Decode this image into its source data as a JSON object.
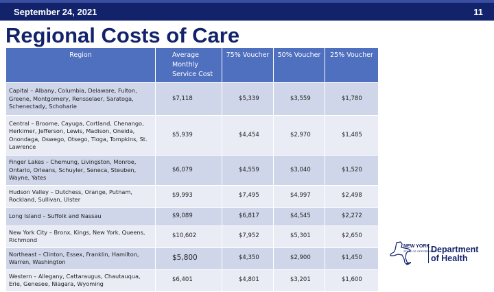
{
  "header": {
    "date": "September 24, 2021",
    "page_number": "11"
  },
  "title": "Regional Costs of Care",
  "table": {
    "columns": {
      "region": "Region",
      "average": "Average Monthly Service Cost",
      "v75": "75% Voucher",
      "v50": "50% Voucher",
      "v25": "25% Voucher"
    },
    "rows": [
      {
        "region": "Capital – Albany, Columbia, Delaware, Fulton, Greene, Montgomery, Rensselaer, Saratoga, Schenectady, Schoharie",
        "average": "$7,118",
        "v75": "$5,339",
        "v50": "$3,559",
        "v25": "$1,780"
      },
      {
        "region": "Central – Broome, Cayuga, Cortland, Chenango, Herkimer, Jefferson, Lewis, Madison, Oneida, Onondaga, Oswego, Otsego, Tioga, Tompkins, St. Lawrence",
        "average": "$5,939",
        "v75": "$4,454",
        "v50": "$2,970",
        "v25": "$1,485"
      },
      {
        "region": "Finger Lakes – Chemung, Livingston, Monroe, Ontario, Orleans, Schuyler, Seneca, Steuben, Wayne, Yates",
        "average": "$6,079",
        "v75": "$4,559",
        "v50": "$3,040",
        "v25": "$1,520"
      },
      {
        "region": "Hudson Valley – Dutchess, Orange, Putnam, Rockland, Sullivan, Ulster",
        "average": "$9,993",
        "v75": "$7,495",
        "v50": "$4,997",
        "v25": "$2,498"
      },
      {
        "region": "Long Island – Suffolk and Nassau",
        "average": "$9,089",
        "v75": "$6,817",
        "v50": "$4,545",
        "v25": "$2,272"
      },
      {
        "region": "New York City – Bronx, Kings, New York, Queens, Richmond",
        "average": "$10,602",
        "v75": "$7,952",
        "v50": "$5,301",
        "v25": "$2,650"
      },
      {
        "region": "Northeast – Clinton, Essex, Franklin, Hamilton, Warren, Washington",
        "average": "$5,800",
        "v75": "$4,350",
        "v50": "$2,900",
        "v25": "$1,450"
      },
      {
        "region": "Western – Allegany, Cattaraugus, Chautauqua, Erie, Genesee, Niagara, Wyoming",
        "average": "$6,401",
        "v75": "$4,801",
        "v50": "$3,201",
        "v25": "$1,600"
      }
    ]
  },
  "logo": {
    "state": "NEW YORK",
    "state_sub": "STATE OF OPPORTUNITY.",
    "line1": "Department",
    "line2": "of Health"
  },
  "colors": {
    "header_bar": "#13236b",
    "table_header": "#4f6fbf",
    "row_odd": "#cfd6e9",
    "row_even": "#e9ecf5"
  }
}
